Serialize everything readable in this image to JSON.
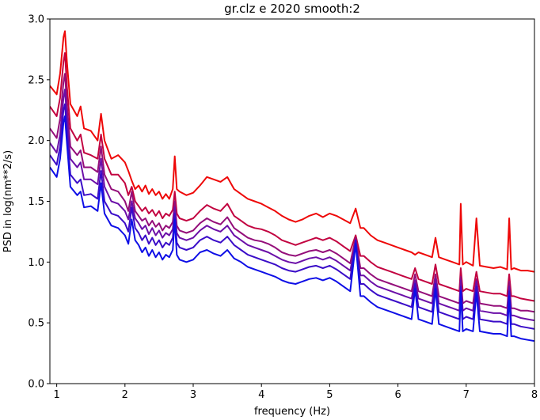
{
  "chart_data": {
    "type": "line",
    "title": "gr.clz e 2020 smooth:2",
    "xlabel": "frequency (Hz)",
    "ylabel": "PSD in log(nm**2/s)",
    "xlim": [
      0.9,
      8.0
    ],
    "ylim": [
      0.0,
      3.0
    ],
    "xticks": [
      1,
      2,
      3,
      4,
      5,
      6,
      7,
      8
    ],
    "yticks": [
      0.0,
      0.5,
      1.0,
      1.5,
      2.0,
      2.5,
      3.0
    ],
    "xtick_labels": [
      "1",
      "2",
      "3",
      "4",
      "5",
      "6",
      "7",
      "8"
    ],
    "ytick_labels": [
      "0.0",
      "0.5",
      "1.0",
      "1.5",
      "2.0",
      "2.5",
      "3.0"
    ],
    "grid": false,
    "legend": "none",
    "x": [
      0.9,
      1.0,
      1.05,
      1.1,
      1.12,
      1.15,
      1.2,
      1.3,
      1.35,
      1.4,
      1.5,
      1.6,
      1.65,
      1.7,
      1.8,
      1.9,
      2.0,
      2.05,
      2.1,
      2.15,
      2.2,
      2.25,
      2.3,
      2.35,
      2.4,
      2.45,
      2.5,
      2.55,
      2.6,
      2.65,
      2.7,
      2.73,
      2.76,
      2.8,
      2.9,
      3.0,
      3.1,
      3.2,
      3.3,
      3.4,
      3.5,
      3.6,
      3.7,
      3.8,
      3.9,
      4.0,
      4.1,
      4.2,
      4.3,
      4.4,
      4.5,
      4.6,
      4.7,
      4.8,
      4.9,
      5.0,
      5.1,
      5.2,
      5.3,
      5.38,
      5.45,
      5.5,
      5.6,
      5.7,
      5.8,
      5.9,
      6.0,
      6.1,
      6.2,
      6.25,
      6.3,
      6.4,
      6.5,
      6.55,
      6.6,
      6.7,
      6.8,
      6.9,
      6.92,
      6.95,
      7.0,
      7.1,
      7.15,
      7.2,
      7.3,
      7.4,
      7.5,
      7.6,
      7.63,
      7.66,
      7.7,
      7.8,
      7.9,
      8.0
    ],
    "series": [
      {
        "color": "#ee0808",
        "values": [
          2.45,
          2.38,
          2.55,
          2.85,
          2.9,
          2.65,
          2.3,
          2.2,
          2.28,
          2.1,
          2.08,
          2.0,
          2.22,
          2.0,
          1.85,
          1.88,
          1.82,
          1.75,
          1.67,
          1.6,
          1.63,
          1.58,
          1.63,
          1.56,
          1.6,
          1.55,
          1.58,
          1.52,
          1.56,
          1.52,
          1.6,
          1.87,
          1.6,
          1.58,
          1.55,
          1.57,
          1.63,
          1.7,
          1.68,
          1.66,
          1.7,
          1.6,
          1.56,
          1.52,
          1.5,
          1.48,
          1.45,
          1.42,
          1.38,
          1.35,
          1.33,
          1.35,
          1.38,
          1.4,
          1.37,
          1.4,
          1.38,
          1.35,
          1.32,
          1.44,
          1.28,
          1.28,
          1.22,
          1.18,
          1.16,
          1.14,
          1.12,
          1.1,
          1.08,
          1.06,
          1.08,
          1.06,
          1.04,
          1.2,
          1.04,
          1.02,
          1.0,
          0.98,
          1.48,
          0.98,
          1.0,
          0.97,
          1.36,
          0.97,
          0.96,
          0.95,
          0.96,
          0.94,
          1.36,
          0.94,
          0.95,
          0.93,
          0.93,
          0.92
        ]
      },
      {
        "color": "#c20340",
        "values": [
          2.28,
          2.2,
          2.35,
          2.65,
          2.72,
          2.45,
          2.1,
          2.0,
          2.05,
          1.9,
          1.88,
          1.85,
          2.05,
          1.85,
          1.72,
          1.72,
          1.65,
          1.55,
          1.62,
          1.5,
          1.46,
          1.42,
          1.45,
          1.4,
          1.43,
          1.38,
          1.42,
          1.36,
          1.4,
          1.38,
          1.43,
          1.58,
          1.4,
          1.36,
          1.34,
          1.36,
          1.42,
          1.47,
          1.44,
          1.42,
          1.48,
          1.38,
          1.34,
          1.3,
          1.28,
          1.27,
          1.25,
          1.22,
          1.18,
          1.16,
          1.14,
          1.16,
          1.18,
          1.2,
          1.18,
          1.2,
          1.17,
          1.13,
          1.09,
          1.22,
          1.05,
          1.05,
          1.0,
          0.96,
          0.94,
          0.92,
          0.9,
          0.88,
          0.86,
          0.95,
          0.86,
          0.84,
          0.82,
          0.98,
          0.82,
          0.8,
          0.78,
          0.76,
          0.95,
          0.76,
          0.78,
          0.76,
          0.92,
          0.76,
          0.75,
          0.74,
          0.74,
          0.72,
          0.9,
          0.72,
          0.72,
          0.7,
          0.69,
          0.68
        ]
      },
      {
        "color": "#940e7a",
        "values": [
          2.1,
          2.02,
          2.18,
          2.48,
          2.55,
          2.3,
          1.95,
          1.88,
          1.92,
          1.78,
          1.78,
          1.74,
          1.95,
          1.72,
          1.6,
          1.58,
          1.5,
          1.42,
          1.58,
          1.42,
          1.38,
          1.34,
          1.36,
          1.3,
          1.34,
          1.29,
          1.32,
          1.26,
          1.3,
          1.28,
          1.33,
          1.5,
          1.3,
          1.26,
          1.24,
          1.26,
          1.32,
          1.36,
          1.33,
          1.31,
          1.37,
          1.28,
          1.24,
          1.2,
          1.18,
          1.17,
          1.15,
          1.12,
          1.08,
          1.06,
          1.05,
          1.07,
          1.09,
          1.1,
          1.08,
          1.1,
          1.07,
          1.03,
          0.99,
          1.2,
          0.95,
          0.95,
          0.9,
          0.86,
          0.84,
          0.82,
          0.8,
          0.78,
          0.76,
          0.9,
          0.76,
          0.74,
          0.72,
          0.9,
          0.72,
          0.7,
          0.68,
          0.66,
          0.88,
          0.66,
          0.68,
          0.66,
          0.86,
          0.66,
          0.65,
          0.64,
          0.64,
          0.62,
          0.84,
          0.62,
          0.62,
          0.6,
          0.6,
          0.59
        ]
      },
      {
        "color": "#6b0fa8",
        "values": [
          1.98,
          1.9,
          2.05,
          2.35,
          2.42,
          2.18,
          1.85,
          1.78,
          1.82,
          1.68,
          1.68,
          1.64,
          1.85,
          1.62,
          1.5,
          1.48,
          1.42,
          1.35,
          1.5,
          1.36,
          1.32,
          1.27,
          1.3,
          1.23,
          1.28,
          1.22,
          1.26,
          1.2,
          1.24,
          1.22,
          1.27,
          1.45,
          1.24,
          1.2,
          1.18,
          1.2,
          1.26,
          1.3,
          1.27,
          1.25,
          1.3,
          1.22,
          1.18,
          1.14,
          1.12,
          1.1,
          1.08,
          1.05,
          1.02,
          1.0,
          0.99,
          1.01,
          1.03,
          1.04,
          1.02,
          1.04,
          1.01,
          0.97,
          0.93,
          1.15,
          0.89,
          0.89,
          0.84,
          0.8,
          0.78,
          0.76,
          0.74,
          0.72,
          0.7,
          0.85,
          0.7,
          0.68,
          0.66,
          0.86,
          0.66,
          0.64,
          0.62,
          0.6,
          0.85,
          0.6,
          0.62,
          0.6,
          0.84,
          0.6,
          0.59,
          0.58,
          0.58,
          0.56,
          0.8,
          0.56,
          0.56,
          0.54,
          0.53,
          0.52
        ]
      },
      {
        "color": "#3a0cc8",
        "values": [
          1.88,
          1.8,
          1.95,
          2.25,
          2.3,
          2.08,
          1.72,
          1.65,
          1.68,
          1.55,
          1.56,
          1.52,
          1.75,
          1.5,
          1.4,
          1.38,
          1.32,
          1.25,
          1.45,
          1.28,
          1.24,
          1.18,
          1.22,
          1.15,
          1.2,
          1.14,
          1.18,
          1.12,
          1.16,
          1.14,
          1.2,
          1.4,
          1.16,
          1.12,
          1.1,
          1.12,
          1.18,
          1.21,
          1.18,
          1.16,
          1.21,
          1.14,
          1.1,
          1.06,
          1.04,
          1.02,
          1.0,
          0.98,
          0.95,
          0.93,
          0.92,
          0.94,
          0.96,
          0.97,
          0.95,
          0.97,
          0.94,
          0.9,
          0.86,
          1.18,
          0.82,
          0.82,
          0.77,
          0.73,
          0.71,
          0.69,
          0.67,
          0.65,
          0.63,
          0.82,
          0.63,
          0.61,
          0.59,
          0.82,
          0.59,
          0.57,
          0.55,
          0.53,
          0.8,
          0.53,
          0.55,
          0.53,
          0.8,
          0.53,
          0.52,
          0.51,
          0.51,
          0.49,
          0.76,
          0.49,
          0.49,
          0.47,
          0.46,
          0.45
        ]
      },
      {
        "color": "#0e0ee6",
        "values": [
          1.78,
          1.7,
          1.85,
          2.15,
          2.2,
          1.98,
          1.62,
          1.55,
          1.58,
          1.45,
          1.46,
          1.42,
          1.65,
          1.4,
          1.3,
          1.28,
          1.22,
          1.15,
          1.35,
          1.18,
          1.14,
          1.08,
          1.12,
          1.05,
          1.1,
          1.04,
          1.08,
          1.02,
          1.06,
          1.04,
          1.1,
          1.35,
          1.06,
          1.02,
          1.0,
          1.02,
          1.08,
          1.1,
          1.07,
          1.05,
          1.1,
          1.03,
          1.0,
          0.96,
          0.94,
          0.92,
          0.9,
          0.88,
          0.85,
          0.83,
          0.82,
          0.84,
          0.86,
          0.87,
          0.85,
          0.87,
          0.84,
          0.8,
          0.76,
          1.15,
          0.72,
          0.72,
          0.67,
          0.63,
          0.61,
          0.59,
          0.57,
          0.55,
          0.53,
          0.78,
          0.53,
          0.51,
          0.49,
          0.78,
          0.49,
          0.47,
          0.45,
          0.43,
          0.76,
          0.43,
          0.45,
          0.43,
          0.75,
          0.43,
          0.42,
          0.41,
          0.41,
          0.39,
          0.72,
          0.39,
          0.39,
          0.37,
          0.36,
          0.35
        ]
      }
    ]
  }
}
